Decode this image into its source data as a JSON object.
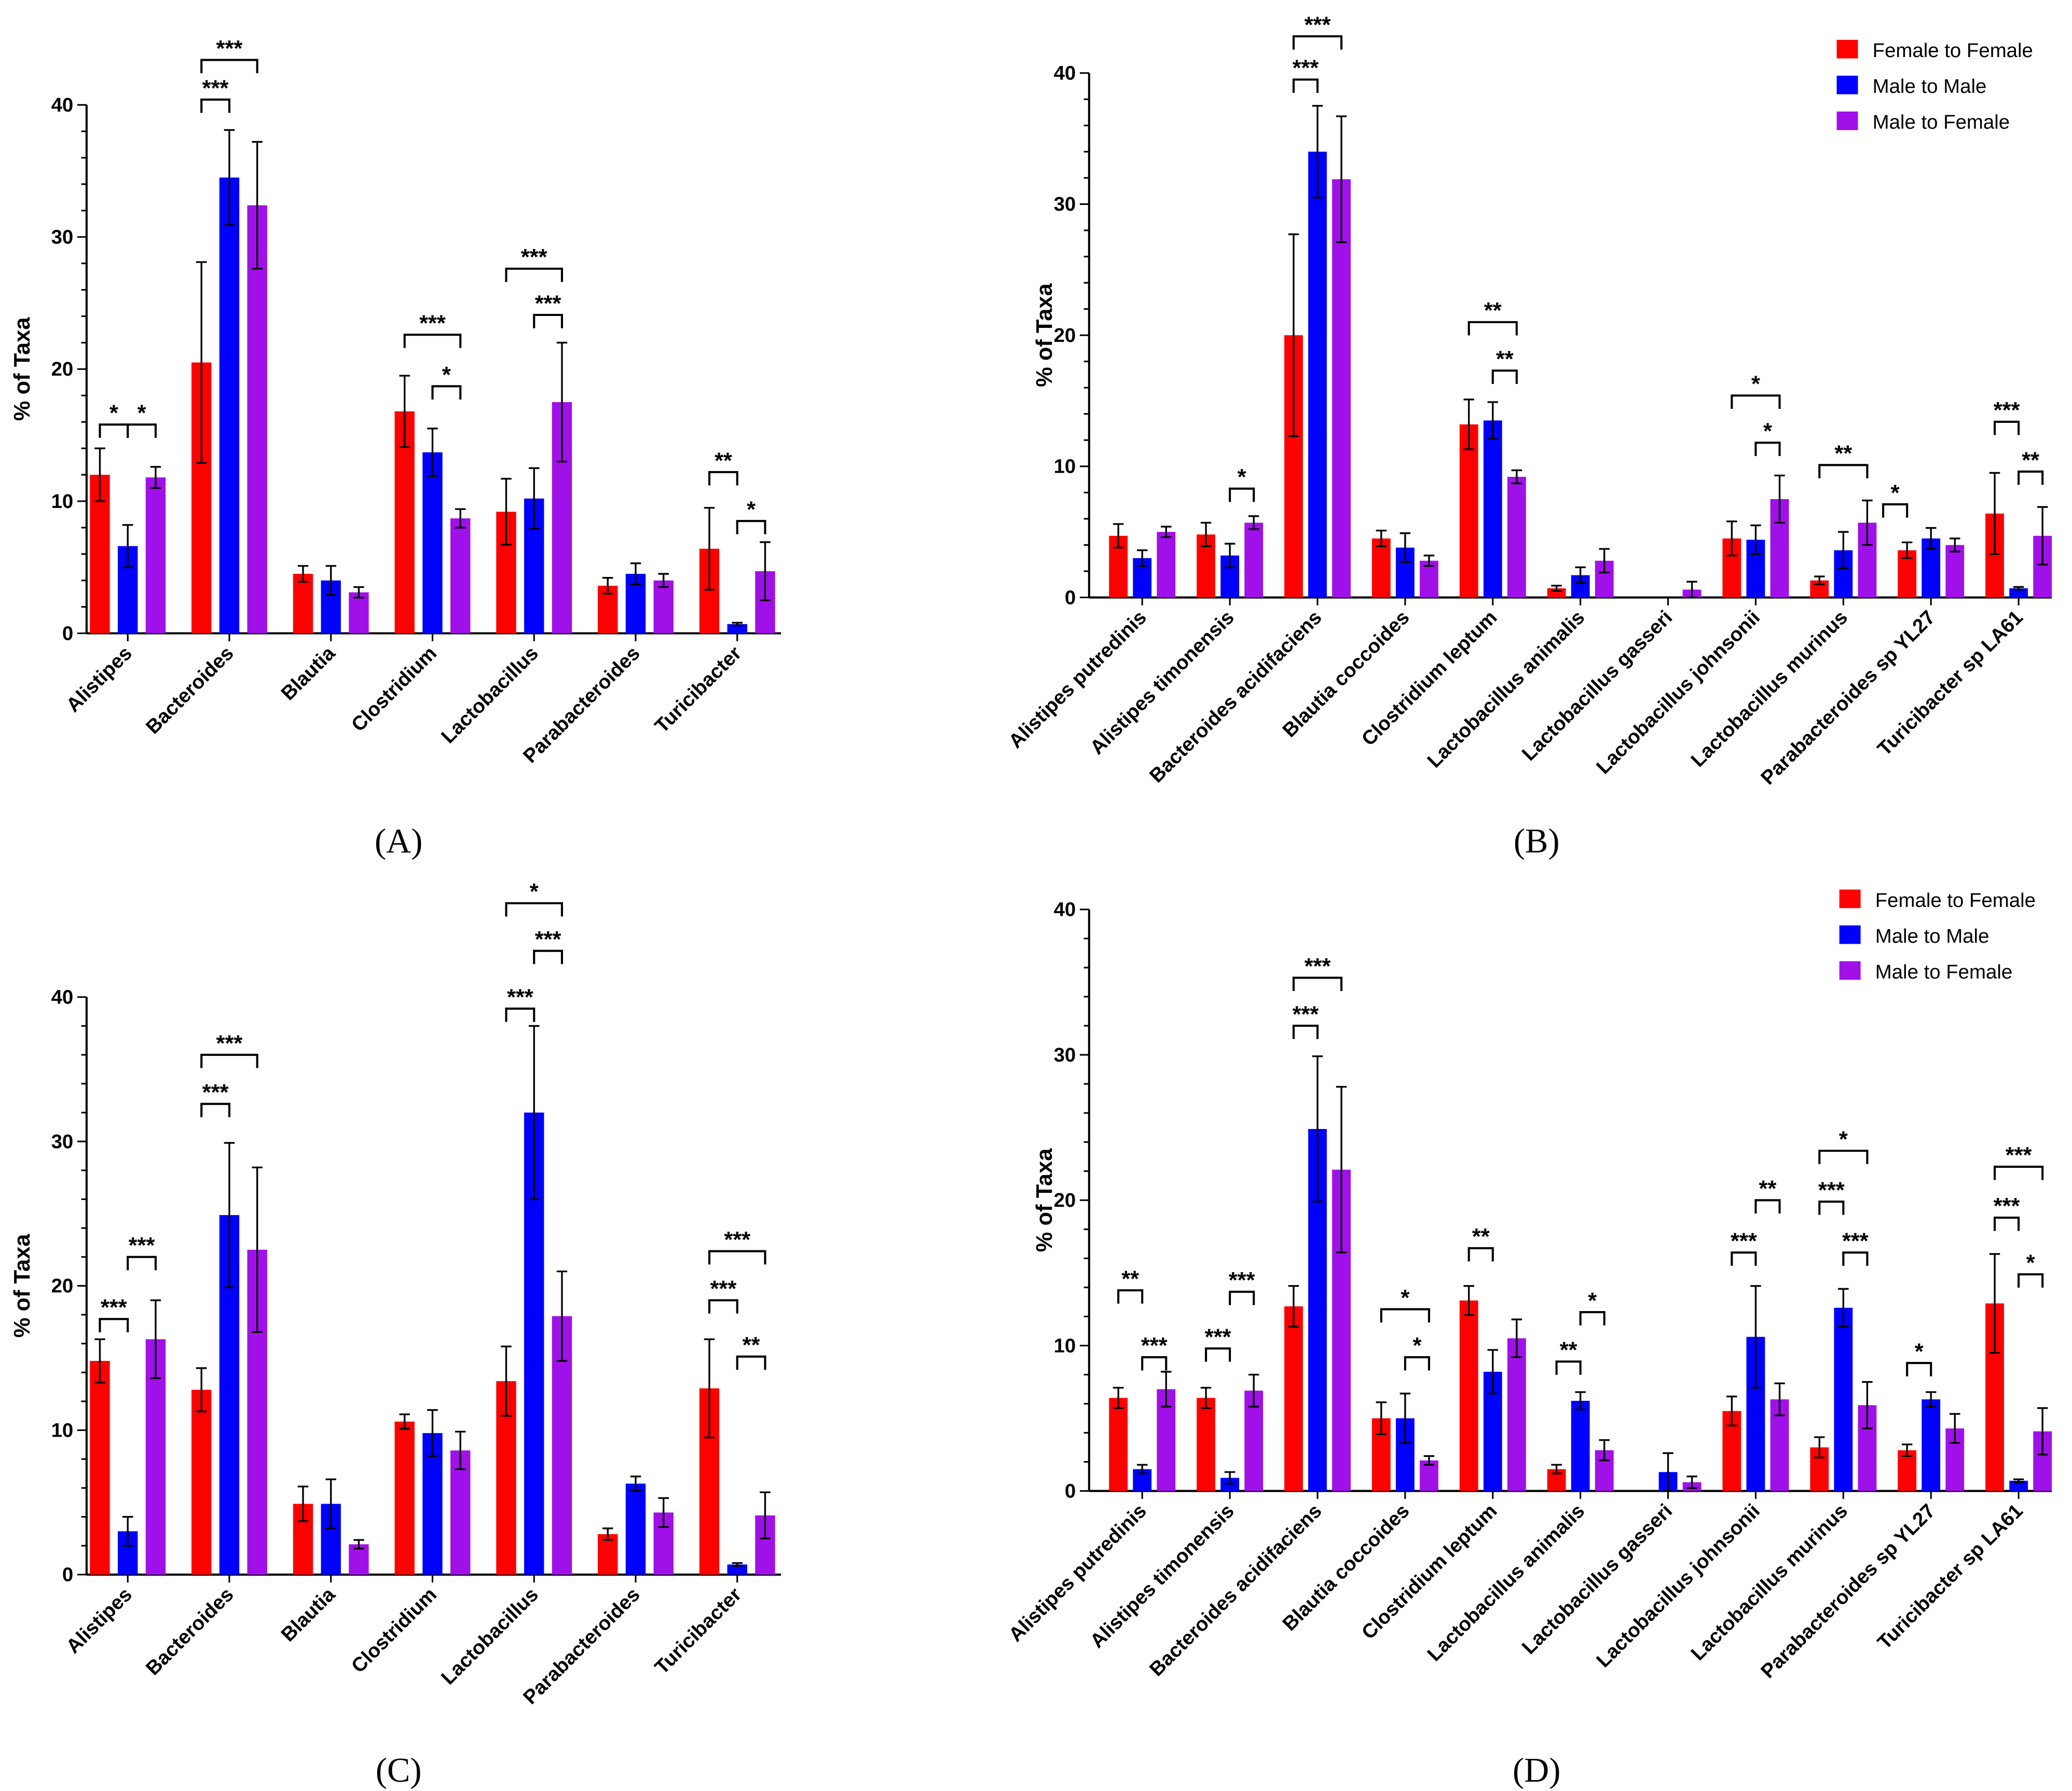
{
  "colors": {
    "Female to Female": "#FF0000",
    "Male to Male": "#0000FF",
    "Male to Female": "#A010E8"
  },
  "chart_data": [
    {
      "panel": "(A)",
      "type": "bar",
      "ylabel": "% of Taxa",
      "ylim": [
        0,
        40
      ],
      "yticks": [
        0,
        10,
        20,
        30,
        40
      ],
      "legend": null,
      "categories": [
        "Alistipes",
        "Bacteroides",
        "Blautia",
        "Clostridium",
        "Lactobacillus",
        "Parabacteroides",
        "Turicibacter"
      ],
      "series": [
        {
          "name": "Female to Female",
          "values": [
            12,
            20.5,
            4.5,
            16.8,
            9.2,
            3.6,
            6.4
          ],
          "errors": [
            2,
            7.6,
            0.6,
            2.7,
            2.5,
            0.6,
            3.1
          ]
        },
        {
          "name": "Male to Male",
          "values": [
            6.6,
            34.5,
            4,
            13.7,
            10.2,
            4.5,
            0.7
          ],
          "errors": [
            1.6,
            3.6,
            1.1,
            1.8,
            2.3,
            0.8,
            0.1
          ]
        },
        {
          "name": "Male to Female",
          "values": [
            11.8,
            32.4,
            3.1,
            8.7,
            17.5,
            4,
            4.7
          ],
          "errors": [
            0.8,
            4.8,
            0.4,
            0.7,
            4.5,
            0.5,
            2.2
          ]
        }
      ],
      "significance": [
        {
          "cat": 0,
          "from": 0,
          "to": 1,
          "y": 15.8,
          "label": "*"
        },
        {
          "cat": 0,
          "from": 1,
          "to": 2,
          "y": 15.8,
          "label": "*"
        },
        {
          "cat": 1,
          "from": 0,
          "to": 1,
          "y": 40.4,
          "label": "***"
        },
        {
          "cat": 1,
          "from": 0,
          "to": 2,
          "y": 43.4,
          "label": "***"
        },
        {
          "cat": 3,
          "from": 0,
          "to": 2,
          "y": 22.6,
          "label": "***"
        },
        {
          "cat": 3,
          "from": 1,
          "to": 2,
          "y": 18.7,
          "label": "*"
        },
        {
          "cat": 4,
          "from": 0,
          "to": 2,
          "y": 27.6,
          "label": "***"
        },
        {
          "cat": 4,
          "from": 1,
          "to": 2,
          "y": 24.1,
          "label": "***"
        },
        {
          "cat": 6,
          "from": 0,
          "to": 1,
          "y": 12.2,
          "label": "**"
        },
        {
          "cat": 6,
          "from": 1,
          "to": 2,
          "y": 8.5,
          "label": "*"
        }
      ]
    },
    {
      "panel": "(B)",
      "type": "bar",
      "ylabel": "% of Taxa",
      "ylim": [
        0,
        40
      ],
      "yticks": [
        0,
        10,
        20,
        30,
        40
      ],
      "legend": "top-right",
      "categories": [
        "Alistipes putredinis",
        "Alistipes timonensis",
        "Bacteroides acidifaciens",
        "Blautia coccoides",
        "Clostridium leptum",
        "Lactobacillus animalis",
        "Lactobacillus gasseri",
        "Lactobacillus johnsonii",
        "Lactobacillus murinus",
        "Parabacteroides sp YL27",
        "Turicibacter sp LA61"
      ],
      "series": [
        {
          "name": "Female to Female",
          "values": [
            4.7,
            4.8,
            20,
            4.5,
            13.2,
            0.7,
            0,
            4.5,
            1.3,
            3.6,
            6.4
          ],
          "errors": [
            0.9,
            0.9,
            7.7,
            0.6,
            1.9,
            0.2,
            0,
            1.3,
            0.3,
            0.6,
            3.1
          ]
        },
        {
          "name": "Male to Male",
          "values": [
            3,
            3.2,
            34,
            3.8,
            13.5,
            1.7,
            0,
            4.4,
            3.6,
            4.5,
            0.7
          ],
          "errors": [
            0.6,
            0.9,
            3.5,
            1.1,
            1.4,
            0.6,
            0,
            1.1,
            1.4,
            0.8,
            0.1
          ]
        },
        {
          "name": "Male to Female",
          "values": [
            5,
            5.7,
            31.9,
            2.8,
            9.2,
            2.8,
            0.6,
            7.5,
            5.7,
            4,
            4.7
          ],
          "errors": [
            0.4,
            0.5,
            4.8,
            0.4,
            0.5,
            0.9,
            0.6,
            1.8,
            1.7,
            0.5,
            2.2
          ]
        }
      ],
      "significance": [
        {
          "cat": 1,
          "from": 1,
          "to": 2,
          "y": 8.3,
          "label": "*"
        },
        {
          "cat": 2,
          "from": 0,
          "to": 1,
          "y": 39.5,
          "label": "***"
        },
        {
          "cat": 2,
          "from": 0,
          "to": 2,
          "y": 42.8,
          "label": "***"
        },
        {
          "cat": 4,
          "from": 0,
          "to": 2,
          "y": 21,
          "label": "**"
        },
        {
          "cat": 4,
          "from": 1,
          "to": 2,
          "y": 17.3,
          "label": "**"
        },
        {
          "cat": 7,
          "from": 0,
          "to": 2,
          "y": 15.4,
          "label": "*"
        },
        {
          "cat": 7,
          "from": 1,
          "to": 2,
          "y": 11.8,
          "label": "*"
        },
        {
          "cat": 8,
          "from": 0,
          "to": 2,
          "y": 10.1,
          "label": "**"
        },
        {
          "cat": 9,
          "from": -1,
          "to": 0,
          "y": 7.1,
          "label": "*"
        },
        {
          "cat": 10,
          "from": 0,
          "to": 1,
          "y": 13.4,
          "label": "***"
        },
        {
          "cat": 10,
          "from": 1,
          "to": 2,
          "y": 9.6,
          "label": "**"
        }
      ]
    },
    {
      "panel": "(C)",
      "type": "bar",
      "ylabel": "% of Taxa",
      "ylim": [
        0,
        40
      ],
      "yticks": [
        0,
        10,
        20,
        30,
        40
      ],
      "legend": null,
      "categories": [
        "Alistipes",
        "Bacteroides",
        "Blautia",
        "Clostridium",
        "Lactobacillus",
        "Parabacteroides",
        "Turicibacter"
      ],
      "series": [
        {
          "name": "Female to Female",
          "values": [
            14.8,
            12.8,
            4.9,
            10.6,
            13.4,
            2.8,
            12.9
          ],
          "errors": [
            1.5,
            1.5,
            1.2,
            0.5,
            2.4,
            0.4,
            3.4
          ]
        },
        {
          "name": "Male to Male",
          "values": [
            3,
            24.9,
            4.9,
            9.8,
            32,
            6.3,
            0.7
          ],
          "errors": [
            1,
            5,
            1.7,
            1.6,
            6,
            0.5,
            0.1
          ]
        },
        {
          "name": "Male to Female",
          "values": [
            16.3,
            22.5,
            2.1,
            8.6,
            17.9,
            4.3,
            4.1
          ],
          "errors": [
            2.7,
            5.7,
            0.3,
            1.3,
            3.1,
            1,
            1.6
          ]
        }
      ],
      "significance": [
        {
          "cat": 0,
          "from": 0,
          "to": 1,
          "y": 17.7,
          "label": "***"
        },
        {
          "cat": 0,
          "from": 1,
          "to": 2,
          "y": 22,
          "label": "***"
        },
        {
          "cat": 1,
          "from": 0,
          "to": 1,
          "y": 32.6,
          "label": "***"
        },
        {
          "cat": 1,
          "from": 0,
          "to": 2,
          "y": 36,
          "label": "***"
        },
        {
          "cat": 4,
          "from": 0,
          "to": 1,
          "y": 39.2,
          "label": "***"
        },
        {
          "cat": 4,
          "from": 1,
          "to": 2,
          "y": 43.2,
          "label": "***"
        },
        {
          "cat": 4,
          "from": 0,
          "to": 2,
          "y": 46.5,
          "label": "*"
        },
        {
          "cat": 6,
          "from": 0,
          "to": 1,
          "y": 19,
          "label": "***"
        },
        {
          "cat": 6,
          "from": 0,
          "to": 2,
          "y": 22.4,
          "label": "***"
        },
        {
          "cat": 6,
          "from": 1,
          "to": 2,
          "y": 15.1,
          "label": "**"
        }
      ]
    },
    {
      "panel": "(D)",
      "type": "bar",
      "ylabel": "% of Taxa",
      "ylim": [
        0,
        40
      ],
      "yticks": [
        0,
        10,
        20,
        30,
        40
      ],
      "legend": "top-right",
      "categories": [
        "Alistipes putredinis",
        "Alistipes timonensis",
        "Bacteroides acidifaciens",
        "Blautia coccoides",
        "Clostridium leptum",
        "Lactobacillus animalis",
        "Lactobacillus gasseri",
        "Lactobacillus johnsonii",
        "Lactobacillus murinus",
        "Parabacteroides sp YL27",
        "Turicibacter sp LA61"
      ],
      "series": [
        {
          "name": "Female to Female",
          "values": [
            6.4,
            6.4,
            12.7,
            5,
            13.1,
            1.5,
            0,
            5.5,
            3,
            2.8,
            12.9
          ],
          "errors": [
            0.7,
            0.7,
            1.4,
            1.1,
            1,
            0.3,
            0,
            1,
            0.7,
            0.4,
            3.4
          ]
        },
        {
          "name": "Male to Male",
          "values": [
            1.5,
            0.9,
            24.9,
            5,
            8.2,
            6.2,
            1.3,
            10.6,
            12.6,
            6.3,
            0.7
          ],
          "errors": [
            0.3,
            0.4,
            5,
            1.7,
            1.5,
            0.6,
            1.3,
            3.5,
            1.3,
            0.5,
            0.1
          ]
        },
        {
          "name": "Male to Female",
          "values": [
            7,
            6.9,
            22.1,
            2.1,
            10.5,
            2.8,
            0.6,
            6.3,
            5.9,
            4.3,
            4.1
          ],
          "errors": [
            1.2,
            1.1,
            5.7,
            0.3,
            1.3,
            0.7,
            0.4,
            1.1,
            1.6,
            1,
            1.6
          ]
        }
      ],
      "significance": [
        {
          "cat": 0,
          "from": 0,
          "to": 1,
          "y": 13.8,
          "label": "**"
        },
        {
          "cat": 0,
          "from": 1,
          "to": 2,
          "y": 9.2,
          "label": "***"
        },
        {
          "cat": 1,
          "from": 0,
          "to": 1,
          "y": 9.8,
          "label": "***"
        },
        {
          "cat": 1,
          "from": 1,
          "to": 2,
          "y": 13.7,
          "label": "***"
        },
        {
          "cat": 2,
          "from": 0,
          "to": 1,
          "y": 32,
          "label": "***"
        },
        {
          "cat": 2,
          "from": 0,
          "to": 2,
          "y": 35.3,
          "label": "***"
        },
        {
          "cat": 3,
          "from": 0,
          "to": 2,
          "y": 12.5,
          "label": "*"
        },
        {
          "cat": 3,
          "from": 1,
          "to": 2,
          "y": 9.2,
          "label": "*"
        },
        {
          "cat": 4,
          "from": 0,
          "to": 1,
          "y": 16.7,
          "label": "**"
        },
        {
          "cat": 5,
          "from": 0,
          "to": 1,
          "y": 8.9,
          "label": "**"
        },
        {
          "cat": 5,
          "from": 1,
          "to": 2,
          "y": 12.3,
          "label": "*"
        },
        {
          "cat": 7,
          "from": 0,
          "to": 1,
          "y": 16.4,
          "label": "***"
        },
        {
          "cat": 7,
          "from": 1,
          "to": 2,
          "y": 20,
          "label": "**"
        },
        {
          "cat": 8,
          "from": 0,
          "to": 1,
          "y": 19.9,
          "label": "***"
        },
        {
          "cat": 8,
          "from": 1,
          "to": 2,
          "y": 16.4,
          "label": "***"
        },
        {
          "cat": 8,
          "from": 0,
          "to": 2,
          "y": 23.4,
          "label": "*"
        },
        {
          "cat": 9,
          "from": 0,
          "to": 1,
          "y": 8.8,
          "label": "*"
        },
        {
          "cat": 10,
          "from": 0,
          "to": 1,
          "y": 18.8,
          "label": "***"
        },
        {
          "cat": 10,
          "from": 0,
          "to": 2,
          "y": 22.3,
          "label": "***"
        },
        {
          "cat": 10,
          "from": 1,
          "to": 2,
          "y": 14.9,
          "label": "*"
        }
      ]
    }
  ]
}
